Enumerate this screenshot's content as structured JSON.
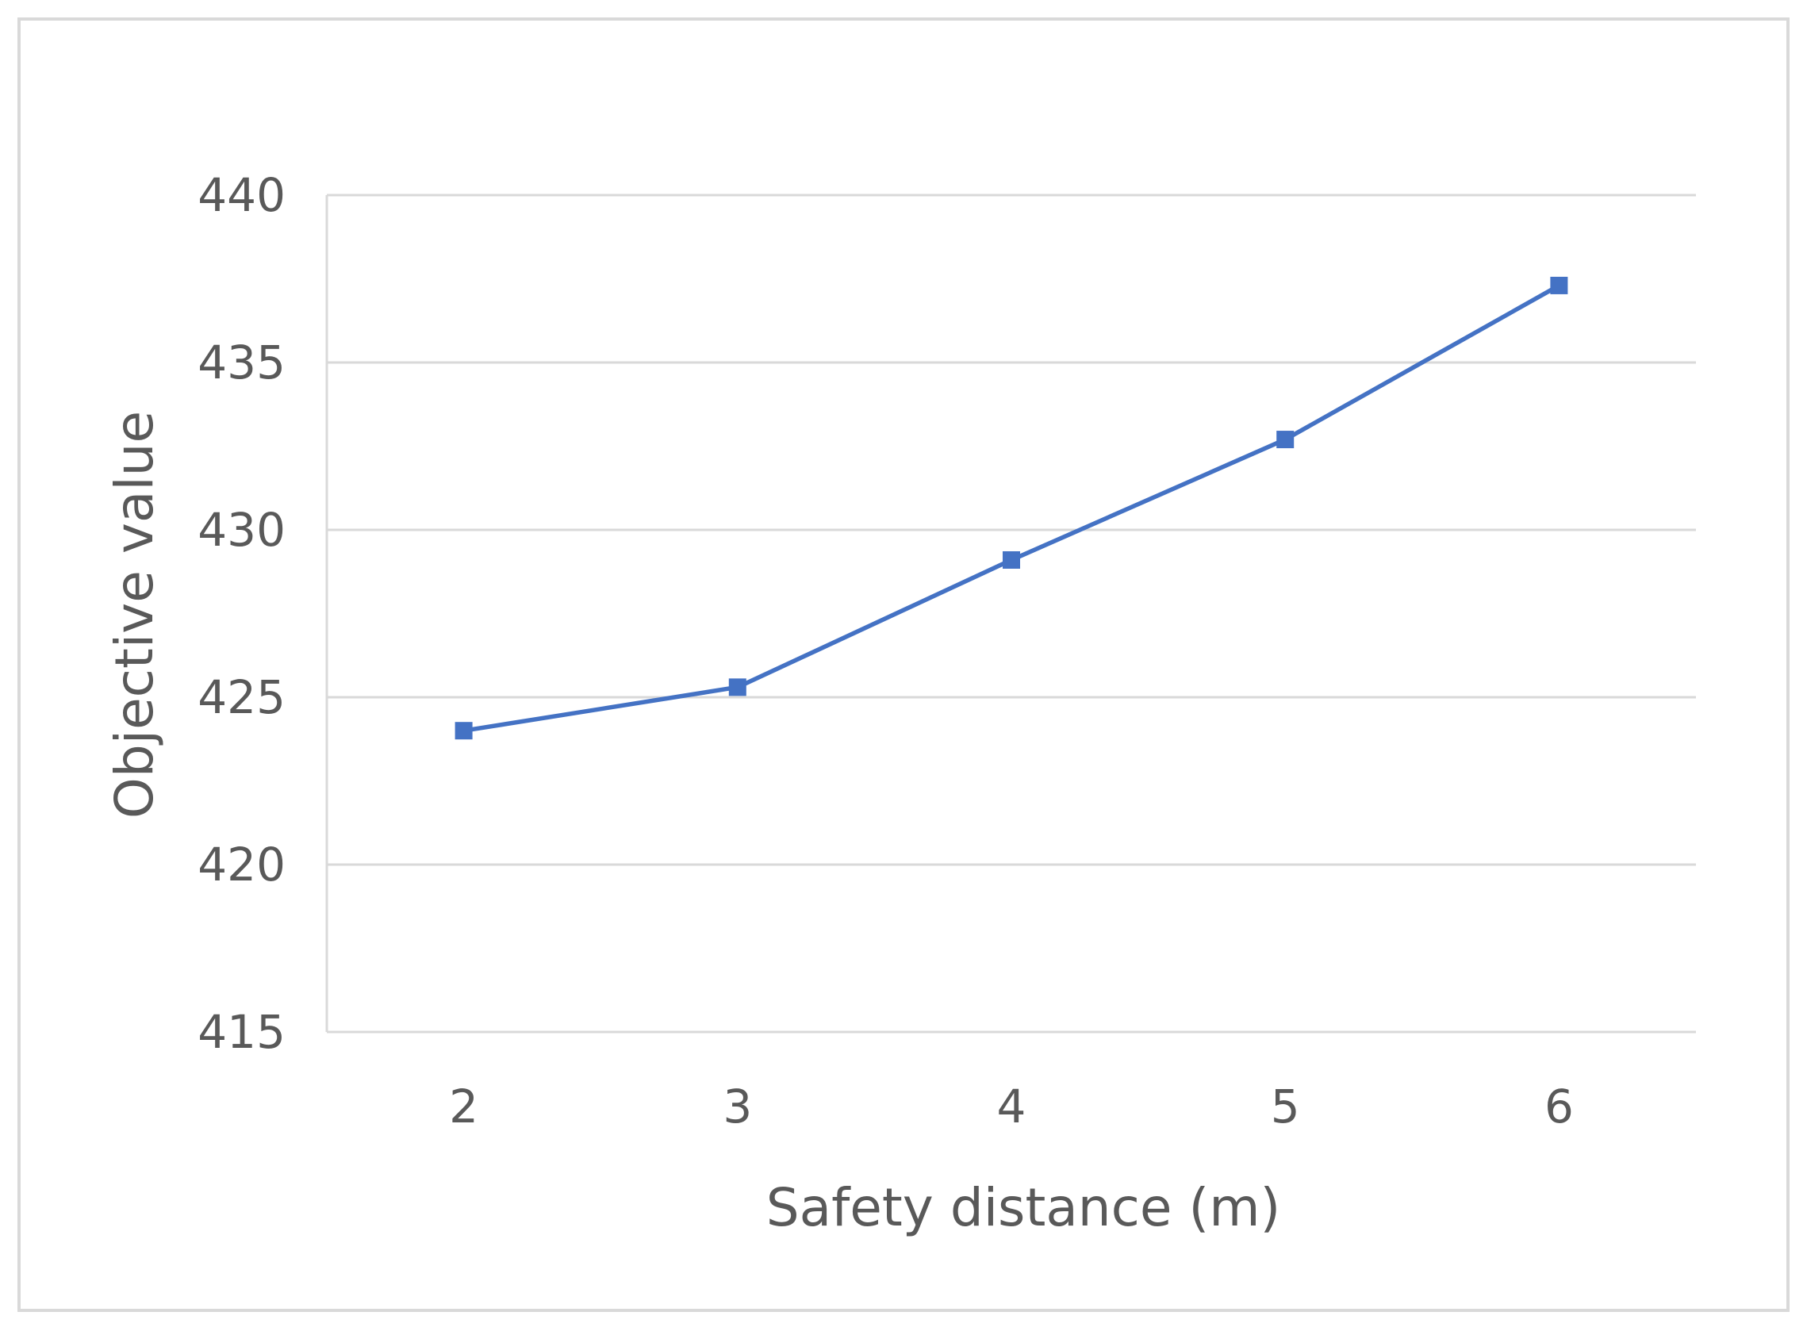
{
  "chart_data": {
    "type": "line",
    "title": "",
    "xlabel": "Safety distance (m)",
    "ylabel": "Objective value",
    "categories": [
      "2",
      "3",
      "4",
      "5",
      "6"
    ],
    "series": [
      {
        "values": [
          424.0,
          425.3,
          429.1,
          432.7,
          437.3
        ],
        "color": "#4472C4",
        "marker": "square"
      }
    ],
    "ylim": [
      415,
      440
    ],
    "yticks": [
      "415",
      "420",
      "425",
      "430",
      "435",
      "440"
    ],
    "grid": "horizontal",
    "legend": "none"
  },
  "colors": {
    "series": "#4472C4",
    "grid": "#D9D9D9",
    "frame": "#D9D9D9",
    "text": "#595959"
  }
}
